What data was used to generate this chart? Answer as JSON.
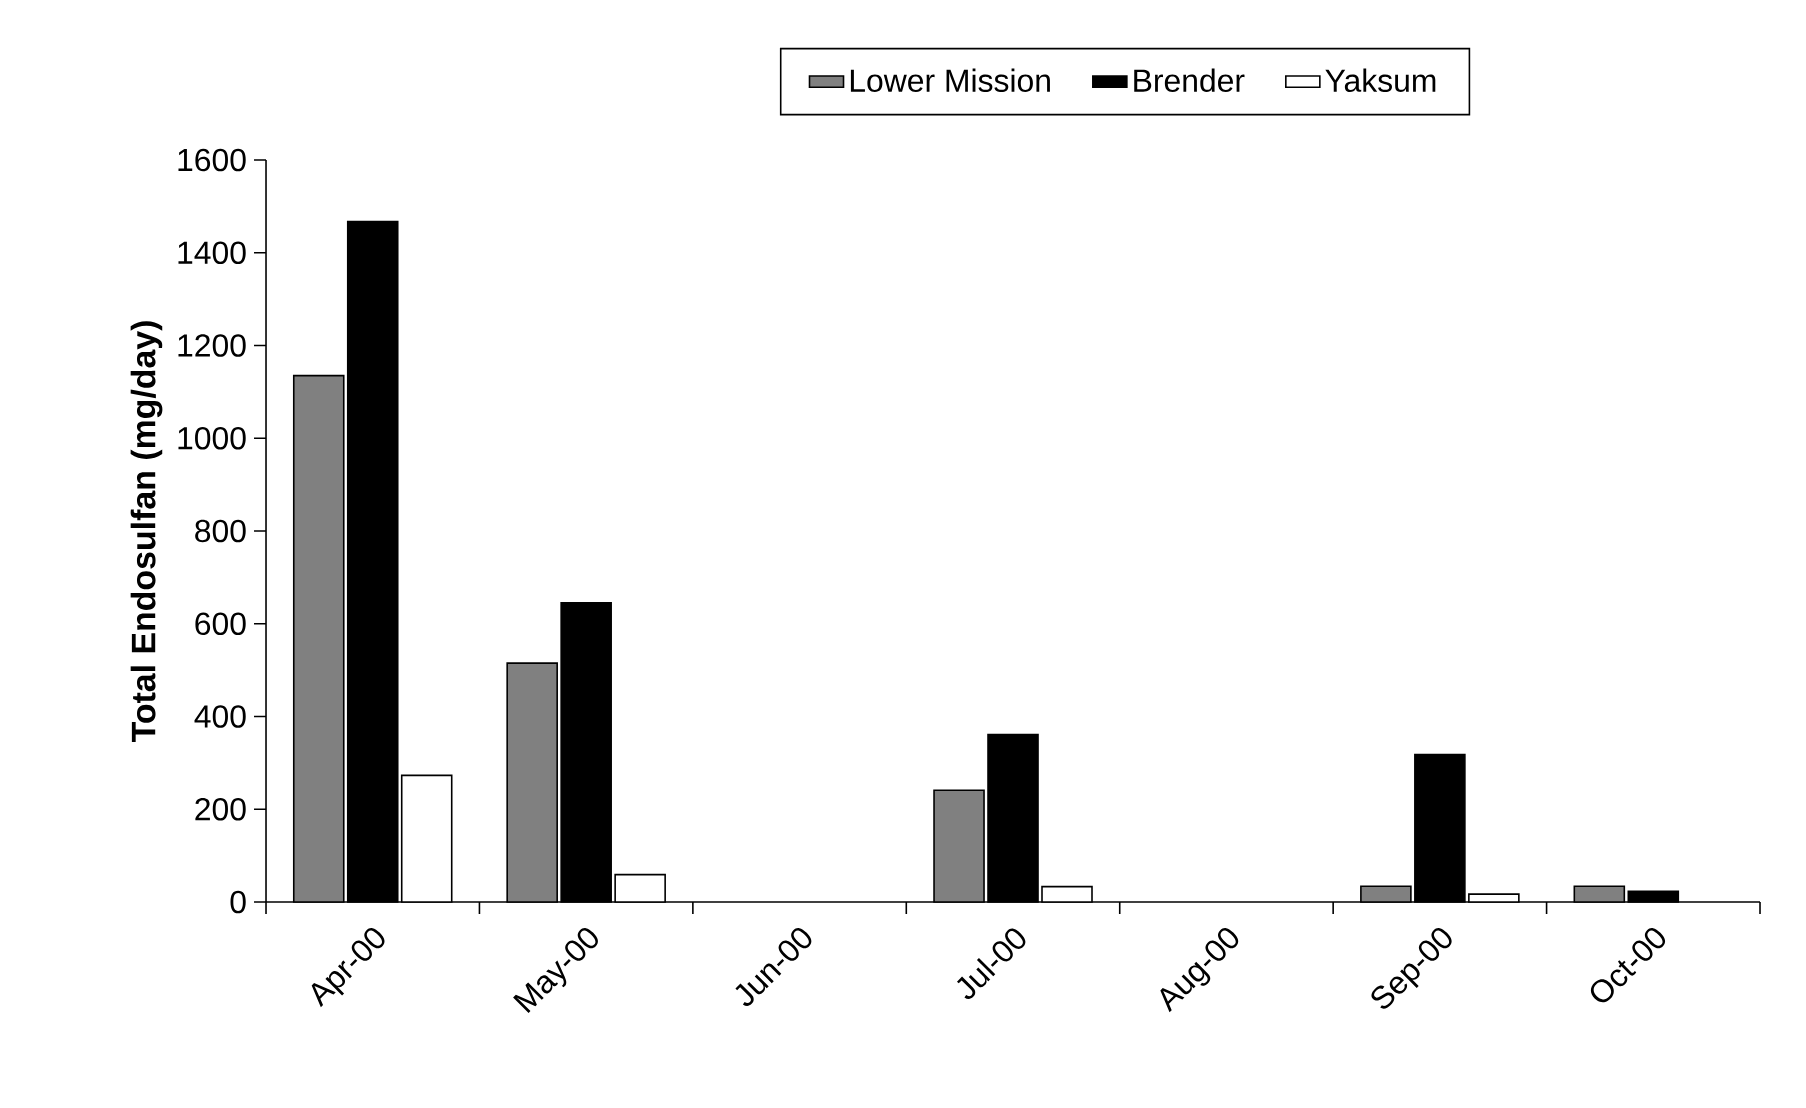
{
  "chart_data": {
    "type": "bar",
    "ylabel": "**Total Endosulfan (mg/day)**",
    "categories": [
      "Apr-00",
      "May-00",
      "Jun-00",
      "Jul-00",
      "Aug-00",
      "Sep-00",
      "Oct-00"
    ],
    "series": [
      {
        "name": "Lower Mission",
        "color": "#808080",
        "values": [
          1135,
          515,
          null,
          241,
          null,
          34,
          34
        ]
      },
      {
        "name": "Brender",
        "color": "#000000",
        "values": [
          1467,
          645,
          null,
          361,
          null,
          318,
          23
        ]
      },
      {
        "name": "Yaksum",
        "color": "#ffffff",
        "values": [
          273,
          59,
          null,
          33,
          null,
          17,
          null
        ]
      }
    ],
    "ylim": [
      0,
      1600
    ],
    "yticks": [
      0,
      200,
      400,
      600,
      800,
      1000,
      1200,
      1400,
      1600
    ],
    "grid": false,
    "legend": "top"
  }
}
